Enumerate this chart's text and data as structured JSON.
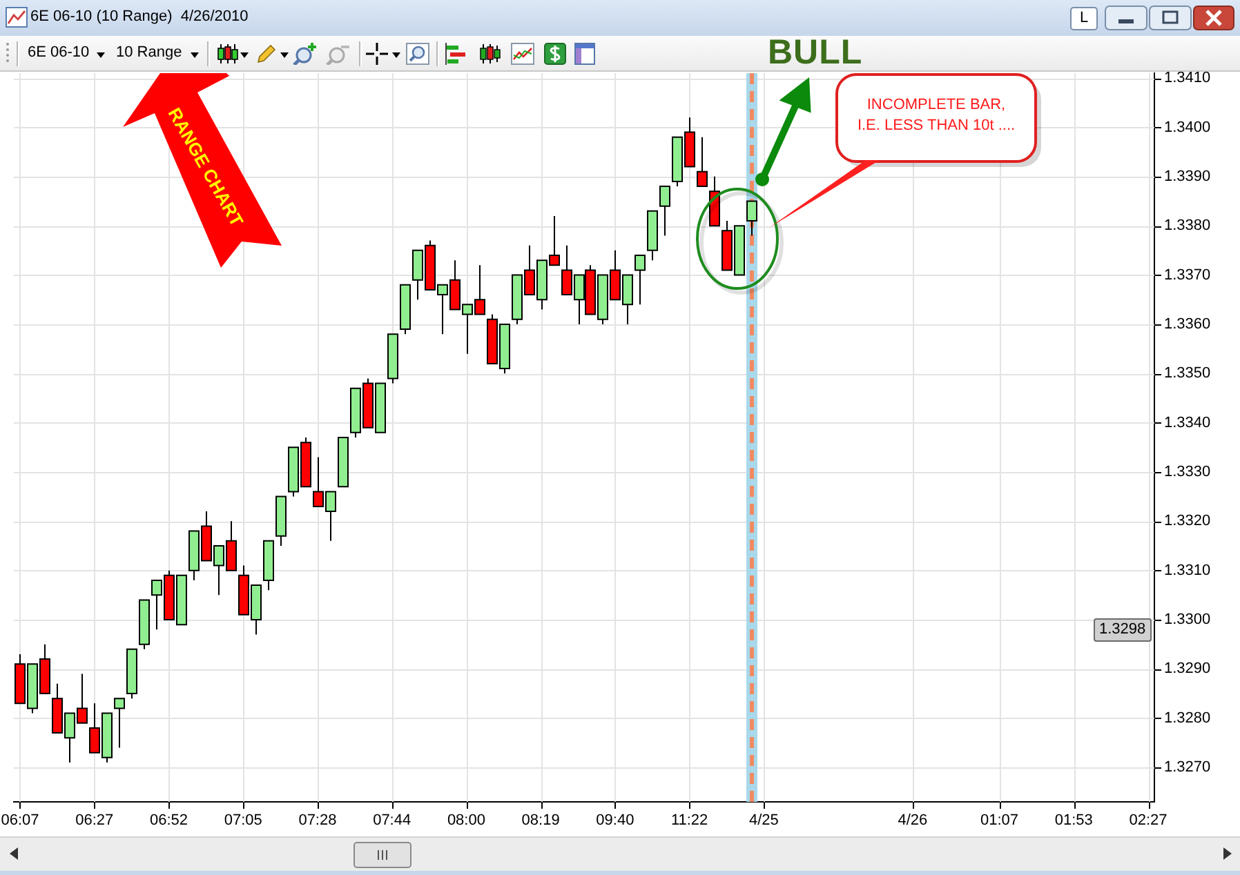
{
  "chart_data": {
    "type": "candlestick",
    "title": "6E 06-10 (10 Range)  4/26/2010",
    "categories": [
      "06:07",
      null,
      null,
      null,
      null,
      null,
      "06:27",
      null,
      null,
      null,
      null,
      null,
      "06:52",
      null,
      null,
      null,
      null,
      null,
      "07:05",
      null,
      null,
      null,
      null,
      null,
      "07:28",
      null,
      null,
      null,
      null,
      null,
      "07:44",
      null,
      null,
      null,
      null,
      null,
      "08:00",
      null,
      null,
      null,
      null,
      null,
      "08:19",
      null,
      null,
      null,
      null,
      null,
      "09:40",
      null,
      null,
      null,
      null,
      null,
      "11:22",
      null,
      null,
      null,
      null,
      null,
      "4/25",
      null,
      null,
      null,
      null,
      null,
      null,
      null,
      null,
      null,
      null,
      null,
      "4/26",
      null,
      null,
      null,
      null,
      null,
      null,
      "01:07",
      null,
      null,
      null,
      null,
      null,
      "01:53",
      null,
      null,
      null,
      null,
      null,
      "02:27"
    ],
    "ohlc": [
      [
        1.3291,
        1.3293,
        1.3283,
        1.3283
      ],
      [
        1.3282,
        1.3291,
        1.3281,
        1.3291
      ],
      [
        1.3292,
        1.3295,
        1.3285,
        1.3285
      ],
      [
        1.3284,
        1.3287,
        1.3277,
        1.3277
      ],
      [
        1.3276,
        1.3281,
        1.3271,
        1.3281
      ],
      [
        1.3282,
        1.3289,
        1.3279,
        1.3279
      ],
      [
        1.3278,
        1.3283,
        1.3273,
        1.3273
      ],
      [
        1.3272,
        1.3281,
        1.3271,
        1.3281
      ],
      [
        1.3282,
        1.3284,
        1.3274,
        1.3284
      ],
      [
        1.3285,
        1.3294,
        1.3284,
        1.3294
      ],
      [
        1.3295,
        1.3304,
        1.3294,
        1.3304
      ],
      [
        1.3305,
        1.3308,
        1.3298,
        1.3308
      ],
      [
        1.3309,
        1.331,
        1.33,
        1.33
      ],
      [
        1.3299,
        1.3309,
        1.3299,
        1.3309
      ],
      [
        1.331,
        1.3318,
        1.3308,
        1.3318
      ],
      [
        1.3319,
        1.3322,
        1.3312,
        1.3312
      ],
      [
        1.3311,
        1.3315,
        1.3305,
        1.3315
      ],
      [
        1.3316,
        1.332,
        1.331,
        1.331
      ],
      [
        1.3309,
        1.3311,
        1.3301,
        1.3301
      ],
      [
        1.33,
        1.3307,
        1.3297,
        1.3307
      ],
      [
        1.3308,
        1.3316,
        1.3306,
        1.3316
      ],
      [
        1.3317,
        1.3325,
        1.3315,
        1.3325
      ],
      [
        1.3326,
        1.3335,
        1.3325,
        1.3335
      ],
      [
        1.3336,
        1.3337,
        1.3327,
        1.3327
      ],
      [
        1.3326,
        1.3333,
        1.3323,
        1.3323
      ],
      [
        1.3322,
        1.3326,
        1.3316,
        1.3326
      ],
      [
        1.3327,
        1.3337,
        1.3327,
        1.3337
      ],
      [
        1.3338,
        1.3347,
        1.3337,
        1.3347
      ],
      [
        1.3348,
        1.3349,
        1.3339,
        1.3339
      ],
      [
        1.3338,
        1.3348,
        1.3338,
        1.3348
      ],
      [
        1.3349,
        1.3358,
        1.3348,
        1.3358
      ],
      [
        1.3359,
        1.3368,
        1.3358,
        1.3368
      ],
      [
        1.3369,
        1.3375,
        1.3365,
        1.3375
      ],
      [
        1.3376,
        1.3377,
        1.3367,
        1.3367
      ],
      [
        1.3366,
        1.3368,
        1.3358,
        1.3368
      ],
      [
        1.3369,
        1.3373,
        1.3363,
        1.3363
      ],
      [
        1.3362,
        1.3364,
        1.3354,
        1.3364
      ],
      [
        1.3365,
        1.3372,
        1.3362,
        1.3362
      ],
      [
        1.3361,
        1.3362,
        1.3352,
        1.3352
      ],
      [
        1.3351,
        1.336,
        1.335,
        1.336
      ],
      [
        1.3361,
        1.337,
        1.336,
        1.337
      ],
      [
        1.3371,
        1.3376,
        1.3366,
        1.3366
      ],
      [
        1.3365,
        1.3373,
        1.3363,
        1.3373
      ],
      [
        1.3374,
        1.3382,
        1.3372,
        1.3372
      ],
      [
        1.3371,
        1.3376,
        1.3366,
        1.3366
      ],
      [
        1.3365,
        1.337,
        1.336,
        1.337
      ],
      [
        1.3371,
        1.3372,
        1.3362,
        1.3362
      ],
      [
        1.3361,
        1.337,
        1.336,
        1.337
      ],
      [
        1.3371,
        1.3375,
        1.3365,
        1.3365
      ],
      [
        1.3364,
        1.337,
        1.336,
        1.337
      ],
      [
        1.3371,
        1.3374,
        1.3364,
        1.3374
      ],
      [
        1.3375,
        1.3383,
        1.3373,
        1.3383
      ],
      [
        1.3384,
        1.3388,
        1.3378,
        1.3388
      ],
      [
        1.3389,
        1.3398,
        1.3388,
        1.3398
      ],
      [
        1.3399,
        1.3402,
        1.3392,
        1.3392
      ],
      [
        1.3391,
        1.3398,
        1.3388,
        1.3388
      ],
      [
        1.3387,
        1.339,
        1.338,
        1.338
      ],
      [
        1.3379,
        1.3381,
        1.3371,
        1.3371
      ],
      [
        1.337,
        1.338,
        1.337,
        1.338
      ],
      [
        1.3381,
        1.3385,
        1.3378,
        1.3385
      ],
      null,
      null,
      null,
      null,
      null,
      null,
      null,
      null,
      null,
      null,
      null,
      null,
      null,
      null,
      null,
      null,
      null,
      null,
      null,
      null,
      null,
      null,
      null,
      null,
      null,
      null,
      null,
      null,
      null,
      null,
      null,
      null
    ],
    "colors": [
      "#ff0000",
      "#90ee90",
      "#ff0000",
      "#ff0000",
      "#90ee90",
      "#ff0000",
      "#ff0000",
      "#90ee90",
      "#90ee90",
      "#90ee90",
      "#90ee90",
      "#90ee90",
      "#ff0000",
      "#90ee90",
      "#90ee90",
      "#ff0000",
      "#90ee90",
      "#ff0000",
      "#ff0000",
      "#90ee90",
      "#90ee90",
      "#90ee90",
      "#90ee90",
      "#ff0000",
      "#ff0000",
      "#90ee90",
      "#90ee90",
      "#90ee90",
      "#ff0000",
      "#90ee90",
      "#90ee90",
      "#90ee90",
      "#90ee90",
      "#ff0000",
      "#90ee90",
      "#ff0000",
      "#90ee90",
      "#ff0000",
      "#ff0000",
      "#90ee90",
      "#90ee90",
      "#ff0000",
      "#90ee90",
      "#ff0000",
      "#ff0000",
      "#90ee90",
      "#ff0000",
      "#90ee90",
      "#ff0000",
      "#90ee90",
      "#90ee90",
      "#90ee90",
      "#90ee90",
      "#90ee90",
      "#ff0000",
      "#ff0000",
      "#ff0000",
      "#ff0000",
      "#90ee90",
      "#90ee90",
      null,
      null,
      null,
      null,
      null,
      null,
      null,
      null,
      null,
      null,
      null,
      null,
      null,
      null,
      null,
      null,
      null,
      null,
      null,
      null,
      null,
      null,
      null,
      null,
      null,
      null,
      null,
      null,
      null,
      null,
      null,
      null
    ],
    "ylim": [
      1.3263,
      1.3411
    ],
    "yticks": [
      {
        "value": 1.327,
        "label": "1.3270"
      },
      {
        "value": 1.328,
        "label": "1.3280"
      },
      {
        "value": 1.329,
        "label": "1.3290"
      },
      {
        "value": 1.33,
        "label": "1.3300"
      },
      {
        "value": 1.331,
        "label": "1.3310"
      },
      {
        "value": 1.332,
        "label": "1.3320"
      },
      {
        "value": 1.333,
        "label": "1.3330"
      },
      {
        "value": 1.334,
        "label": "1.3340"
      },
      {
        "value": 1.335,
        "label": "1.3350"
      },
      {
        "value": 1.336,
        "label": "1.3360"
      },
      {
        "value": 1.337,
        "label": "1.3370"
      },
      {
        "value": 1.338,
        "label": "1.3380"
      },
      {
        "value": 1.339,
        "label": "1.3390"
      },
      {
        "value": 1.34,
        "label": "1.3400"
      },
      {
        "value": 1.341,
        "label": "1.3410"
      }
    ],
    "grid": true,
    "annotations": [
      "BULL",
      "RANGE CHART",
      "INCOMPLETE BAR,\nI.E. LESS THAN 10t ....",
      {
        "text": "1.3298",
        "y": 1.3298
      },
      "6E 06-10",
      "10 Range",
      "L"
    ]
  }
}
